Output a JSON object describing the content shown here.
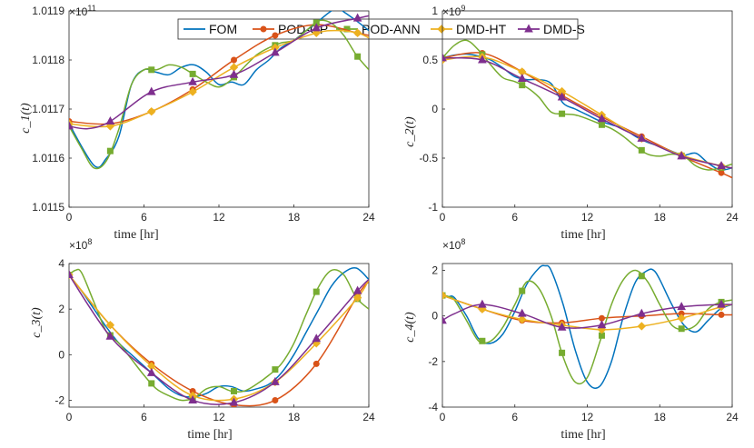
{
  "legend": {
    "entries": [
      "FOM",
      "POD-GP",
      "POD-ANN",
      "DMD-HT",
      "DMD-S"
    ],
    "colors": [
      "#0072BD",
      "#D95319",
      "#77AC30",
      "#EDB120",
      "#7E2F8E"
    ],
    "markers": [
      "none",
      "circle",
      "square",
      "diamond",
      "triangle"
    ]
  },
  "chart_data": [
    {
      "type": "line",
      "ylabel": "c_1(t)",
      "xlabel": "time [hr]",
      "xlim": [
        0,
        24
      ],
      "xticks": [
        "0",
        "6",
        "12",
        "18",
        "24"
      ],
      "ylim": [
        1.0115,
        1.0119
      ],
      "yticks": [
        "1.0115",
        "1.0116",
        "1.0117",
        "1.0118",
        "1.0119"
      ],
      "scale_base": "×10",
      "scale_exp": "11",
      "series": [
        {
          "name": "FOM",
          "x": [
            0,
            2,
            3,
            4,
            5,
            6,
            7,
            8,
            9,
            10,
            11,
            12,
            13,
            14,
            15,
            16,
            17,
            18,
            19,
            20,
            21,
            21.6,
            22,
            23,
            24
          ],
          "y": [
            1.01167,
            1.011585,
            1.0116,
            1.011645,
            1.01175,
            1.01178,
            1.011775,
            1.01177,
            1.011785,
            1.01179,
            1.011775,
            1.01175,
            1.011755,
            1.01175,
            1.01178,
            1.0118,
            1.011825,
            1.01184,
            1.01186,
            1.01188,
            1.0119,
            1.011905,
            1.011898,
            1.01188,
            1.01186
          ]
        },
        {
          "name": "POD-GP",
          "x": [
            0,
            3.3,
            6.6,
            9.9,
            13.2,
            16.5,
            19.8,
            23.1,
            24
          ],
          "y": [
            1.011675,
            1.01167,
            1.011695,
            1.01174,
            1.0118,
            1.01185,
            1.011872,
            1.011855,
            1.01185
          ]
        },
        {
          "name": "POD-ANN",
          "x": [
            0,
            1,
            2,
            3,
            4,
            5,
            6,
            7,
            8,
            9,
            10,
            11,
            12,
            13,
            14,
            15,
            16,
            17,
            18,
            19,
            20,
            21,
            22,
            23,
            24
          ],
          "y": [
            1.011665,
            1.01162,
            1.01158,
            1.011595,
            1.01166,
            1.01175,
            1.01178,
            1.01178,
            1.01179,
            1.011785,
            1.01177,
            1.011755,
            1.011745,
            1.01176,
            1.011785,
            1.01181,
            1.011825,
            1.011835,
            1.01184,
            1.01186,
            1.01188,
            1.011875,
            1.01185,
            1.01181,
            1.01178
          ]
        },
        {
          "name": "DMD-HT",
          "x": [
            0,
            3.3,
            6.6,
            9.9,
            13.2,
            16.5,
            19.8,
            21.5,
            23.1,
            24
          ],
          "y": [
            1.01167,
            1.011665,
            1.011695,
            1.011735,
            1.011785,
            1.011825,
            1.011855,
            1.01186,
            1.011855,
            1.011845
          ]
        },
        {
          "name": "DMD-S",
          "x": [
            0,
            1.5,
            3.3,
            6.6,
            9.9,
            13.2,
            16.5,
            19.8,
            23.1,
            24
          ],
          "y": [
            1.011665,
            1.01166,
            1.011675,
            1.011735,
            1.011755,
            1.01177,
            1.011815,
            1.011865,
            1.011885,
            1.01189
          ]
        }
      ]
    },
    {
      "type": "line",
      "ylabel": "c_2(t)",
      "xlabel": "time [hr]",
      "xlim": [
        0,
        24
      ],
      "xticks": [
        "0",
        "6",
        "12",
        "18",
        "24"
      ],
      "ylim": [
        -1,
        1
      ],
      "yticks": [
        "-1",
        "-0.5",
        "0",
        "0.5",
        "1"
      ],
      "scale_base": "×10",
      "scale_exp": "9",
      "series": [
        {
          "name": "FOM",
          "x": [
            0,
            1,
            2,
            3,
            4,
            5,
            6,
            7,
            8,
            9,
            10,
            11,
            12,
            13,
            14,
            15,
            16,
            17,
            18,
            19,
            20,
            21,
            22,
            23,
            24
          ],
          "y": [
            0.52,
            0.55,
            0.56,
            0.54,
            0.5,
            0.42,
            0.33,
            0.3,
            0.3,
            0.26,
            0.06,
            0.0,
            -0.06,
            -0.12,
            -0.16,
            -0.2,
            -0.28,
            -0.34,
            -0.38,
            -0.43,
            -0.47,
            -0.45,
            -0.55,
            -0.62,
            -0.6
          ]
        },
        {
          "name": "POD-GP",
          "x": [
            0,
            3.3,
            6.6,
            9.9,
            13.2,
            16.5,
            19.8,
            23.1,
            24
          ],
          "y": [
            0.52,
            0.57,
            0.38,
            0.14,
            -0.08,
            -0.28,
            -0.48,
            -0.65,
            -0.7
          ]
        },
        {
          "name": "POD-ANN",
          "x": [
            0,
            1,
            2,
            3,
            4,
            5,
            6,
            7,
            8,
            9,
            10,
            11,
            12,
            13,
            14,
            15,
            16,
            17,
            18,
            19,
            20,
            21,
            22,
            23,
            24
          ],
          "y": [
            0.52,
            0.65,
            0.7,
            0.6,
            0.45,
            0.32,
            0.28,
            0.22,
            0.12,
            -0.03,
            -0.05,
            -0.06,
            -0.1,
            -0.15,
            -0.2,
            -0.28,
            -0.38,
            -0.46,
            -0.48,
            -0.46,
            -0.48,
            -0.58,
            -0.62,
            -0.6,
            -0.56
          ]
        },
        {
          "name": "DMD-HT",
          "x": [
            0,
            3.3,
            6.6,
            9.9,
            13.2,
            16.5,
            19.8,
            23.1,
            24
          ],
          "y": [
            0.5,
            0.53,
            0.38,
            0.18,
            -0.06,
            -0.3,
            -0.47,
            -0.58,
            -0.6
          ]
        },
        {
          "name": "DMD-S",
          "x": [
            0,
            3.3,
            6.6,
            9.9,
            13.2,
            16.5,
            19.8,
            23.1,
            24
          ],
          "y": [
            0.52,
            0.5,
            0.31,
            0.12,
            -0.1,
            -0.3,
            -0.48,
            -0.58,
            -0.6
          ]
        }
      ]
    },
    {
      "type": "line",
      "ylabel": "c_3(t)",
      "xlabel": "time [hr]",
      "xlim": [
        0,
        24
      ],
      "xticks": [
        "0",
        "6",
        "12",
        "18",
        "24"
      ],
      "ylim": [
        -2.3,
        4
      ],
      "yticks": [
        "-2",
        "0",
        "2",
        "4"
      ],
      "scale_base": "×10",
      "scale_exp": "8",
      "series": [
        {
          "name": "FOM",
          "x": [
            0,
            1,
            2,
            3,
            4,
            5,
            6,
            7,
            8,
            9,
            10,
            11,
            12,
            13,
            14,
            15,
            16,
            17,
            18,
            19,
            20,
            21,
            22,
            23,
            24
          ],
          "y": [
            3.5,
            2.8,
            2.0,
            1.2,
            0.5,
            0.0,
            -0.5,
            -1.0,
            -1.5,
            -1.8,
            -1.85,
            -1.7,
            -1.4,
            -1.4,
            -1.6,
            -1.5,
            -1.3,
            -0.8,
            0.0,
            1.0,
            2.0,
            3.0,
            3.6,
            3.8,
            3.3
          ]
        },
        {
          "name": "POD-GP",
          "x": [
            0,
            3.3,
            6.6,
            9.9,
            13.2,
            16.5,
            19.8,
            23.1,
            24
          ],
          "y": [
            3.5,
            1.3,
            -0.4,
            -1.6,
            -2.2,
            -2.0,
            -0.4,
            2.6,
            3.2
          ]
        },
        {
          "name": "POD-ANN",
          "x": [
            0,
            0.5,
            1,
            2,
            3,
            4,
            5,
            6,
            7,
            8,
            9,
            10,
            11,
            12,
            13,
            14,
            15,
            16,
            17,
            18,
            19,
            20,
            21,
            22,
            23,
            24
          ],
          "y": [
            3.5,
            3.7,
            3.6,
            2.3,
            1.0,
            0.5,
            -0.2,
            -0.9,
            -1.5,
            -1.8,
            -2.0,
            -1.9,
            -1.5,
            -1.4,
            -1.6,
            -1.6,
            -1.3,
            -0.9,
            -0.4,
            0.5,
            1.8,
            3.0,
            3.7,
            3.5,
            2.5,
            2.0
          ]
        },
        {
          "name": "DMD-HT",
          "x": [
            0,
            3.3,
            6.6,
            9.9,
            13.2,
            16.5,
            19.8,
            23.1,
            24
          ],
          "y": [
            3.5,
            1.3,
            -0.5,
            -1.8,
            -1.95,
            -1.2,
            0.5,
            2.5,
            3.3
          ]
        },
        {
          "name": "DMD-S",
          "x": [
            0,
            3.3,
            6.6,
            9.9,
            13.2,
            16.5,
            19.8,
            23.1,
            24
          ],
          "y": [
            3.5,
            0.8,
            -0.8,
            -2.0,
            -2.1,
            -1.2,
            0.7,
            2.8,
            3.3
          ]
        }
      ]
    },
    {
      "type": "line",
      "ylabel": "c_4(t)",
      "xlabel": "time [hr]",
      "xlim": [
        0,
        24
      ],
      "xticks": [
        "0",
        "6",
        "12",
        "18",
        "24"
      ],
      "ylim": [
        -4,
        2.3
      ],
      "yticks": [
        "-4",
        "-2",
        "0",
        "2"
      ],
      "scale_base": "×10",
      "scale_exp": "8",
      "series": [
        {
          "name": "FOM",
          "x": [
            0,
            0.5,
            1,
            2,
            3,
            4,
            5,
            6,
            7,
            8,
            8.5,
            9,
            10,
            11,
            12,
            13,
            14,
            15,
            16,
            17,
            17.5,
            18,
            19,
            20,
            21,
            22,
            23,
            24
          ],
          "y": [
            0.9,
            0.85,
            0.8,
            0.0,
            -1.0,
            -1.2,
            -0.8,
            0.2,
            1.4,
            2.1,
            2.2,
            2.0,
            0.5,
            -1.5,
            -2.9,
            -3.1,
            -2.0,
            0.0,
            1.5,
            2.0,
            2.0,
            1.6,
            0.5,
            -0.4,
            -0.7,
            -0.2,
            0.3,
            0.5
          ]
        },
        {
          "name": "POD-GP",
          "x": [
            0,
            3.3,
            6.6,
            9.9,
            13.2,
            16.5,
            19.8,
            23.1,
            24
          ],
          "y": [
            0.9,
            0.3,
            -0.2,
            -0.3,
            -0.1,
            0.0,
            0.1,
            0.05,
            0.05
          ]
        },
        {
          "name": "POD-ANN",
          "x": [
            0,
            0.5,
            1,
            2,
            3,
            4,
            5,
            6,
            7,
            8,
            9,
            10,
            11,
            12,
            13,
            14,
            15,
            16,
            17,
            18,
            19,
            20,
            21,
            22,
            23,
            24
          ],
          "y": [
            0.9,
            0.85,
            0.7,
            -0.2,
            -1.1,
            -1.1,
            -0.5,
            0.5,
            1.5,
            1.2,
            0.0,
            -1.8,
            -2.9,
            -2.7,
            -1.2,
            0.5,
            1.6,
            2.0,
            1.5,
            0.5,
            -0.4,
            -0.6,
            -0.4,
            0.3,
            0.6,
            0.7
          ]
        },
        {
          "name": "DMD-HT",
          "x": [
            0,
            3.3,
            6.6,
            9.9,
            13.2,
            16.5,
            19.8,
            23.1,
            24
          ],
          "y": [
            0.9,
            0.3,
            -0.15,
            -0.4,
            -0.6,
            -0.45,
            -0.1,
            0.4,
            0.5
          ]
        },
        {
          "name": "DMD-S",
          "x": [
            0,
            1,
            3.3,
            6.6,
            9.9,
            13.2,
            16.5,
            19.8,
            23.1,
            24
          ],
          "y": [
            -0.2,
            0.1,
            0.5,
            0.1,
            -0.5,
            -0.4,
            0.1,
            0.4,
            0.5,
            0.5
          ]
        }
      ]
    }
  ]
}
